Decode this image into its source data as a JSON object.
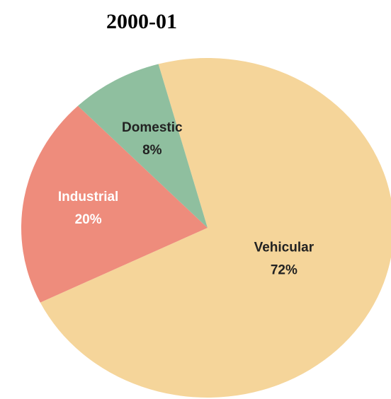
{
  "chart_data": {
    "type": "pie",
    "title": "2000-01",
    "categories": [
      "Vehicular",
      "Industrial",
      "Domestic"
    ],
    "values": [
      72,
      20,
      8
    ],
    "value_labels": [
      "72%",
      "20%",
      "8%"
    ],
    "colors": [
      "#f5d59a",
      "#ee8c7c",
      "#8fbf9f"
    ]
  }
}
